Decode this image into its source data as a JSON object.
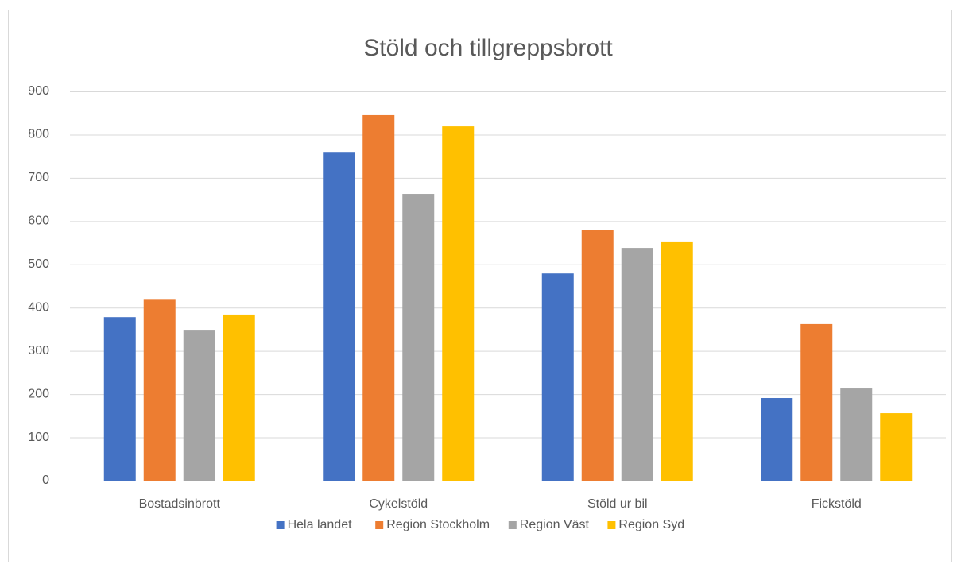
{
  "chart_data": {
    "type": "bar",
    "title": "Stöld och tillgreppsbrott",
    "categories": [
      "Bostadsinbrott",
      "Cykelstöld",
      "Stöld ur bil",
      "Fickstöld"
    ],
    "series": [
      {
        "name": "Hela landet",
        "color": "#4472c4",
        "values": [
          378,
          760,
          479,
          191
        ]
      },
      {
        "name": "Region Stockholm",
        "color": "#ed7d31",
        "values": [
          420,
          845,
          580,
          362
        ]
      },
      {
        "name": "Region Väst",
        "color": "#a5a5a5",
        "values": [
          347,
          663,
          538,
          213
        ]
      },
      {
        "name": "Region Syd",
        "color": "#ffc000",
        "values": [
          384,
          819,
          553,
          156
        ]
      }
    ],
    "ylim": [
      0,
      900
    ],
    "yticks": [
      0,
      100,
      200,
      300,
      400,
      500,
      600,
      700,
      800,
      900
    ],
    "grid": true,
    "legend": "bottom"
  }
}
